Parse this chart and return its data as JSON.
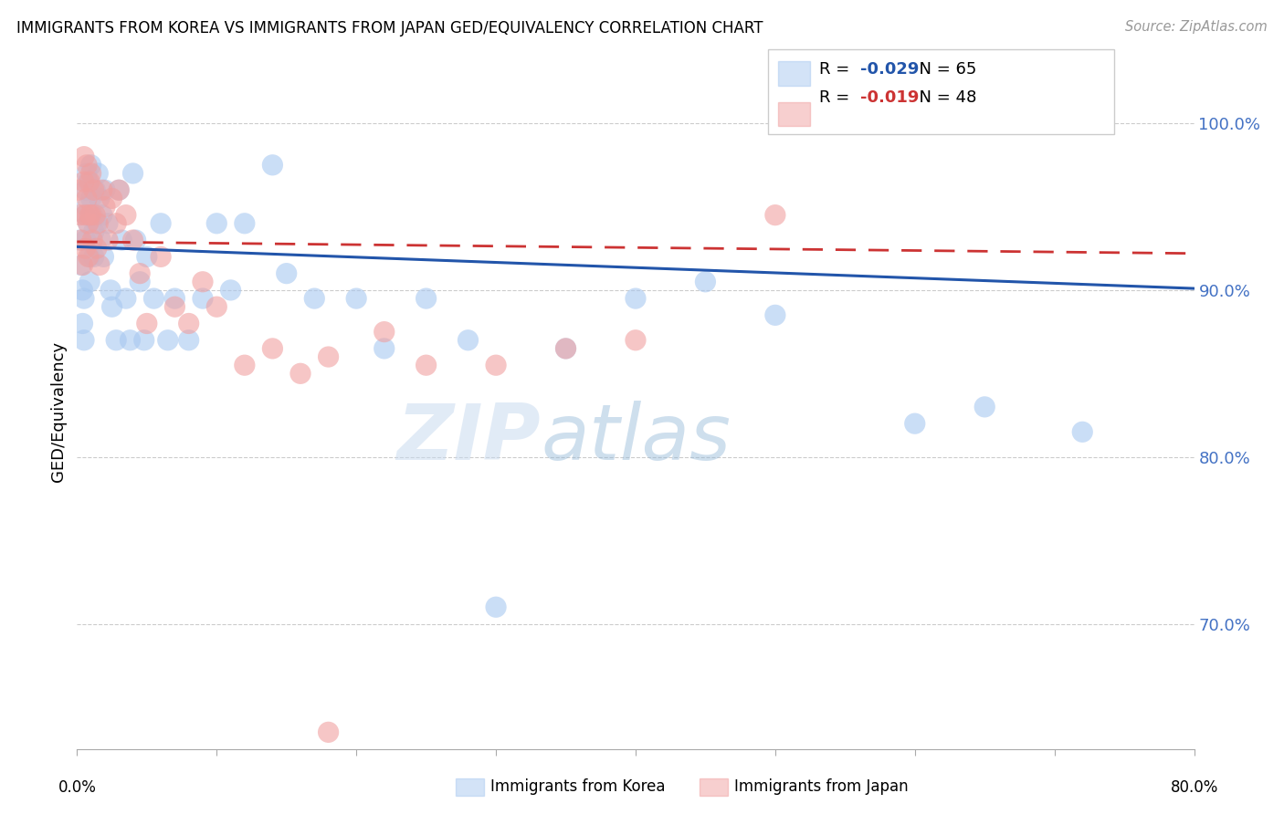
{
  "title": "IMMIGRANTS FROM KOREA VS IMMIGRANTS FROM JAPAN GED/EQUIVALENCY CORRELATION CHART",
  "source": "Source: ZipAtlas.com",
  "ylabel": "GED/Equivalency",
  "yticks": [
    0.7,
    0.8,
    0.9,
    1.0
  ],
  "ytick_labels": [
    "70.0%",
    "80.0%",
    "90.0%",
    "100.0%"
  ],
  "xmin": 0.0,
  "xmax": 0.8,
  "ymin": 0.625,
  "ymax": 1.03,
  "legend_R_korea": "-0.029",
  "legend_N_korea": "65",
  "legend_R_japan": "-0.019",
  "legend_N_japan": "48",
  "korea_color": "#a8c8f0",
  "japan_color": "#f0a0a0",
  "trendline_korea_color": "#2255aa",
  "trendline_japan_color": "#cc3333",
  "korea_x": [
    0.002,
    0.003,
    0.004,
    0.004,
    0.005,
    0.005,
    0.006,
    0.006,
    0.006,
    0.007,
    0.007,
    0.008,
    0.008,
    0.009,
    0.009,
    0.01,
    0.01,
    0.011,
    0.012,
    0.012,
    0.013,
    0.014,
    0.015,
    0.016,
    0.017,
    0.018,
    0.019,
    0.02,
    0.022,
    0.024,
    0.025,
    0.028,
    0.03,
    0.032,
    0.035,
    0.038,
    0.04,
    0.042,
    0.045,
    0.048,
    0.05,
    0.055,
    0.06,
    0.065,
    0.07,
    0.08,
    0.09,
    0.1,
    0.11,
    0.12,
    0.14,
    0.15,
    0.17,
    0.2,
    0.22,
    0.25,
    0.28,
    0.3,
    0.35,
    0.4,
    0.45,
    0.5,
    0.6,
    0.65,
    0.72
  ],
  "korea_y": [
    0.93,
    0.915,
    0.9,
    0.88,
    0.895,
    0.87,
    0.96,
    0.945,
    0.93,
    0.97,
    0.95,
    0.965,
    0.94,
    0.92,
    0.905,
    0.975,
    0.955,
    0.945,
    0.935,
    0.92,
    0.96,
    0.94,
    0.97,
    0.955,
    0.93,
    0.945,
    0.92,
    0.96,
    0.94,
    0.9,
    0.89,
    0.87,
    0.96,
    0.93,
    0.895,
    0.87,
    0.97,
    0.93,
    0.905,
    0.87,
    0.92,
    0.895,
    0.94,
    0.87,
    0.895,
    0.87,
    0.895,
    0.94,
    0.9,
    0.94,
    0.975,
    0.91,
    0.895,
    0.895,
    0.865,
    0.895,
    0.87,
    0.71,
    0.865,
    0.895,
    0.905,
    0.885,
    0.82,
    0.83,
    0.815
  ],
  "japan_x": [
    0.001,
    0.002,
    0.003,
    0.004,
    0.005,
    0.005,
    0.006,
    0.006,
    0.007,
    0.007,
    0.008,
    0.008,
    0.009,
    0.009,
    0.01,
    0.01,
    0.011,
    0.012,
    0.013,
    0.014,
    0.015,
    0.016,
    0.018,
    0.02,
    0.022,
    0.025,
    0.028,
    0.03,
    0.035,
    0.04,
    0.045,
    0.05,
    0.06,
    0.07,
    0.08,
    0.09,
    0.1,
    0.12,
    0.14,
    0.16,
    0.18,
    0.22,
    0.25,
    0.3,
    0.35,
    0.4,
    0.5,
    0.18
  ],
  "japan_y": [
    0.96,
    0.945,
    0.93,
    0.915,
    0.98,
    0.965,
    0.945,
    0.925,
    0.975,
    0.955,
    0.94,
    0.92,
    0.965,
    0.945,
    0.97,
    0.945,
    0.93,
    0.96,
    0.945,
    0.925,
    0.94,
    0.915,
    0.96,
    0.95,
    0.93,
    0.955,
    0.94,
    0.96,
    0.945,
    0.93,
    0.91,
    0.88,
    0.92,
    0.89,
    0.88,
    0.905,
    0.89,
    0.855,
    0.865,
    0.85,
    0.86,
    0.875,
    0.855,
    0.855,
    0.865,
    0.87,
    0.945,
    0.635
  ],
  "watermark_zip": "ZIP",
  "watermark_atlas": "atlas",
  "grid_color": "#cccccc",
  "bg_color": "#ffffff"
}
